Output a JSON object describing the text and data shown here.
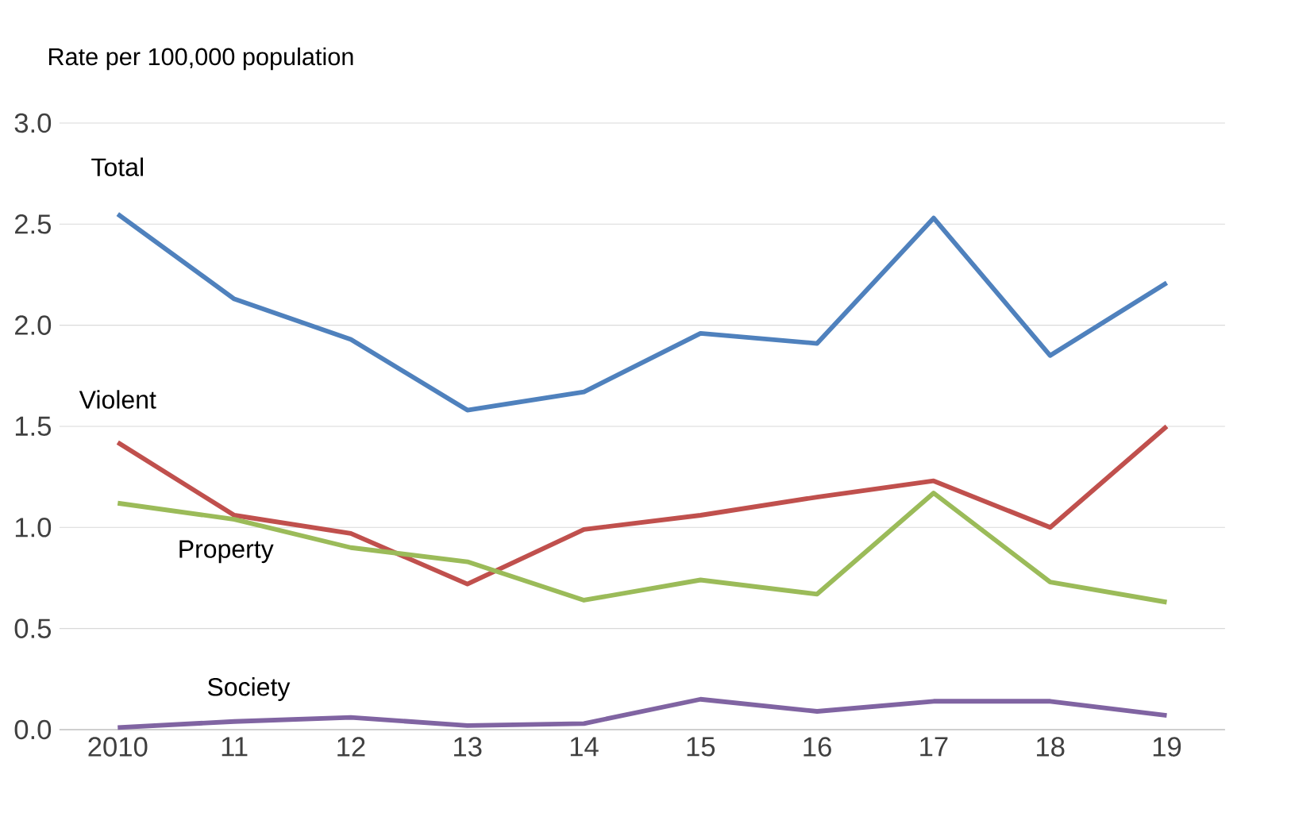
{
  "chart_data": {
    "type": "line",
    "ylabel": "Rate per 100,000 population",
    "categories": [
      "2010",
      "11",
      "12",
      "13",
      "14",
      "15",
      "16",
      "17",
      "18",
      "19"
    ],
    "series": [
      {
        "name": "Total",
        "color": "#4f81bd",
        "values": [
          2.55,
          2.13,
          1.93,
          1.58,
          1.67,
          1.96,
          1.91,
          2.53,
          1.85,
          2.21
        ]
      },
      {
        "name": "Violent",
        "color": "#c0504d",
        "values": [
          1.42,
          1.06,
          0.97,
          0.72,
          0.99,
          1.06,
          1.15,
          1.23,
          1.0,
          1.5
        ]
      },
      {
        "name": "Property",
        "color": "#9bbb59",
        "values": [
          1.12,
          1.04,
          0.9,
          0.83,
          0.64,
          0.74,
          0.67,
          1.17,
          0.73,
          0.63
        ]
      },
      {
        "name": "Society",
        "color": "#8064a2",
        "values": [
          0.01,
          0.04,
          0.06,
          0.02,
          0.03,
          0.15,
          0.09,
          0.14,
          0.14,
          0.07
        ]
      }
    ],
    "ylim": [
      0,
      3
    ],
    "yticks": [
      {
        "value": 0,
        "label": "0.0"
      },
      {
        "value": 0.5,
        "label": "0.5"
      },
      {
        "value": 1,
        "label": "1.0"
      },
      {
        "value": 1.5,
        "label": "1.5"
      },
      {
        "value": 2,
        "label": "2.0"
      },
      {
        "value": 2.5,
        "label": "2.5"
      },
      {
        "value": 3,
        "label": "3.0"
      }
    ],
    "grid": "y",
    "marker": "none",
    "line_style": "solid"
  }
}
